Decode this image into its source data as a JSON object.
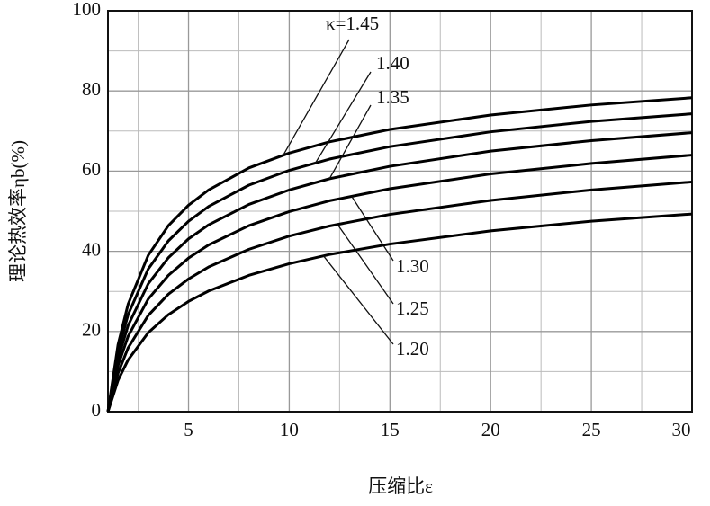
{
  "chart_data": {
    "type": "line",
    "x_label": "压缩比ε",
    "y_label": "理论热效率ηb(%)",
    "x": [
      1,
      1.5,
      2,
      3,
      4,
      5,
      6,
      8,
      10,
      12,
      15,
      20,
      25,
      30
    ],
    "series": [
      {
        "name": "κ=1.45",
        "color": "#000000",
        "values": [
          0,
          16.7,
          26.8,
          39.0,
          46.4,
          51.5,
          55.3,
          60.8,
          64.5,
          67.3,
          70.4,
          74.0,
          76.5,
          78.3
        ]
      },
      {
        "name": "1.40",
        "color": "#000000",
        "values": [
          0,
          15.0,
          24.2,
          35.6,
          42.6,
          47.5,
          51.2,
          56.5,
          60.2,
          63.0,
          66.1,
          69.8,
          72.4,
          74.3
        ]
      },
      {
        "name": "1.35",
        "color": "#000000",
        "values": [
          0,
          13.2,
          21.5,
          31.9,
          38.4,
          43.1,
          46.6,
          51.7,
          55.3,
          58.1,
          61.2,
          65.0,
          67.6,
          69.6
        ]
      },
      {
        "name": "1.30",
        "color": "#000000",
        "values": [
          0,
          11.5,
          18.8,
          28.1,
          34.0,
          38.3,
          41.6,
          46.4,
          49.9,
          52.6,
          55.6,
          59.3,
          61.9,
          64.0
        ]
      },
      {
        "name": "1.25",
        "color": "#000000",
        "values": [
          0,
          9.6,
          15.9,
          24.0,
          29.3,
          33.1,
          36.1,
          40.5,
          43.8,
          46.3,
          49.2,
          52.7,
          55.3,
          57.3
        ]
      },
      {
        "name": "1.20",
        "color": "#000000",
        "values": [
          0,
          7.8,
          12.9,
          19.7,
          24.2,
          27.5,
          30.1,
          34.0,
          36.9,
          39.2,
          41.8,
          45.1,
          47.5,
          49.3
        ]
      }
    ],
    "xlim": [
      1,
      30
    ],
    "ylim": [
      0,
      100
    ],
    "xticks": [
      5,
      10,
      15,
      20,
      25,
      30
    ],
    "yticks": [
      0,
      20,
      40,
      60,
      80,
      100
    ],
    "x_minor_grid": [
      2.5,
      7.5,
      12.5,
      17.5,
      22.5,
      27.5
    ],
    "y_minor_grid": [
      10,
      30,
      50,
      70,
      90
    ],
    "grid": true
  }
}
